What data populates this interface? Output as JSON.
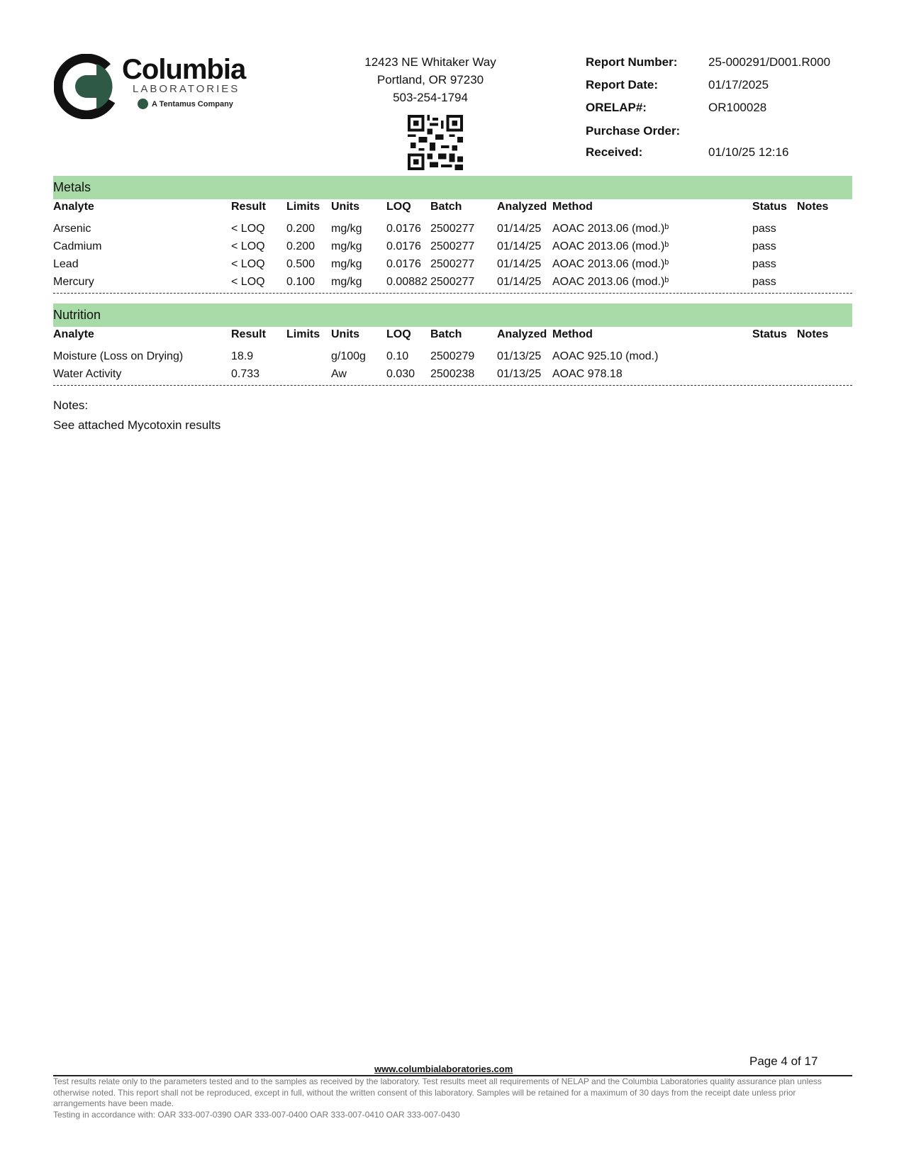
{
  "header": {
    "logo": {
      "name": "Columbia",
      "sub": "LABORATORIES",
      "tagline": "A Tentamus Company"
    },
    "address": [
      "12423 NE Whitaker Way",
      "Portland, OR 97230",
      "503-254-1794"
    ],
    "report": [
      {
        "label": "Report Number:",
        "value": "25-000291/D001.R000"
      },
      {
        "label": "Report Date:",
        "value": "01/17/2025"
      },
      {
        "label": "ORELAP#:",
        "value": "OR100028"
      },
      {
        "label": "Purchase Order:",
        "value": ""
      },
      {
        "label": "Received:",
        "value": "01/10/25  12:16"
      }
    ]
  },
  "columns": [
    "Analyte",
    "Result",
    "Limits",
    "Units",
    "LOQ",
    "Batch",
    "Analyzed",
    "Method",
    "Status",
    "Notes"
  ],
  "metals": {
    "title": "Metals",
    "rows": [
      [
        "Arsenic",
        "< LOQ",
        "0.200",
        "mg/kg",
        "0.0176",
        "2500277",
        "01/14/25",
        "AOAC 2013.06 (mod.)ᵇ",
        "pass",
        ""
      ],
      [
        "Cadmium",
        "< LOQ",
        "0.200",
        "mg/kg",
        "0.0176",
        "2500277",
        "01/14/25",
        "AOAC 2013.06 (mod.)ᵇ",
        "pass",
        ""
      ],
      [
        "Lead",
        "< LOQ",
        "0.500",
        "mg/kg",
        "0.0176",
        "2500277",
        "01/14/25",
        "AOAC 2013.06 (mod.)ᵇ",
        "pass",
        ""
      ],
      [
        "Mercury",
        "< LOQ",
        "0.100",
        "mg/kg",
        "0.00882",
        "2500277",
        "01/14/25",
        "AOAC 2013.06 (mod.)ᵇ",
        "pass",
        ""
      ]
    ]
  },
  "nutrition": {
    "title": "Nutrition",
    "rows": [
      [
        "Moisture (Loss on Drying)",
        "18.9",
        "",
        "g/100g",
        "0.10",
        "2500279",
        "01/13/25",
        "AOAC 925.10 (mod.)",
        "",
        ""
      ],
      [
        "Water Activity",
        "0.733",
        "",
        "Aw",
        "0.030",
        "2500238",
        "01/13/25",
        "AOAC 978.18",
        "",
        ""
      ]
    ]
  },
  "notes": {
    "label": "Notes:",
    "text": "See attached Mycotoxin results"
  },
  "footer": {
    "page": "Page 4 of 17",
    "website": "www.columbialaboratories.com",
    "disclaimer": "Test results relate only to the parameters tested and to the samples as received by the laboratory. Test results meet all requirements of NELAP and the Columbia Laboratories quality assurance plan unless otherwise noted. This report shall not be reproduced, except in full, without the written consent of this laboratory. Samples will be retained for a maximum of 30 days from the receipt date unless prior arrangements have been made.",
    "testing": "Testing in accordance with: OAR 333-007-0390 OAR 333-007-0400 OAR 333-007-0410  OAR 333-007-0430"
  },
  "colors": {
    "section_bar": "#a8dba8",
    "brand_green": "#2e5a45"
  }
}
